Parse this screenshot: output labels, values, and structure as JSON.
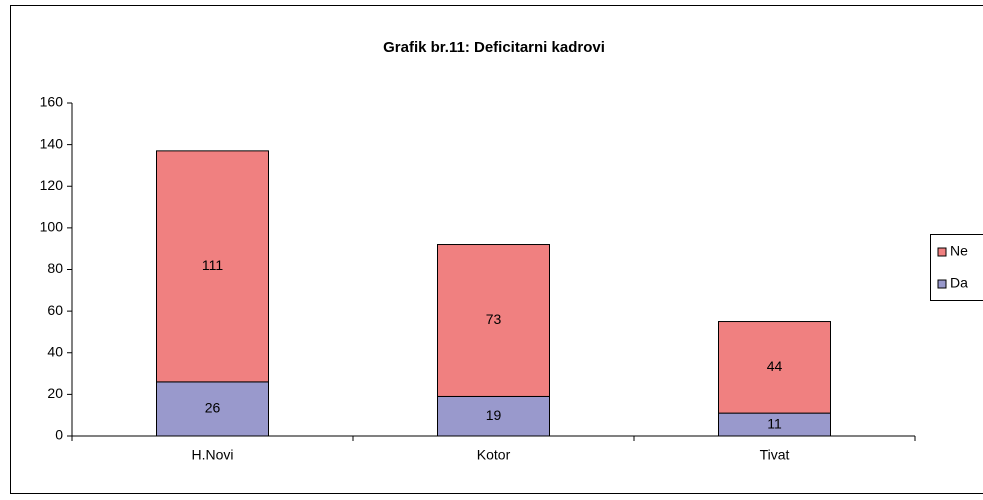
{
  "chart_data": {
    "type": "stacked_bar",
    "title": "Grafik br.11: Deficitarni kadrovi",
    "categories": [
      "H.Novi",
      "Kotor",
      "Tivat"
    ],
    "series": [
      {
        "name": "Da",
        "color": "#9999cc",
        "values": [
          26,
          19,
          11
        ]
      },
      {
        "name": "Ne",
        "color": "#f08080",
        "values": [
          111,
          73,
          44
        ]
      }
    ],
    "ylim": [
      0,
      160
    ],
    "yticks": [
      0,
      20,
      40,
      60,
      80,
      100,
      120,
      140,
      160
    ],
    "legend": "right"
  }
}
